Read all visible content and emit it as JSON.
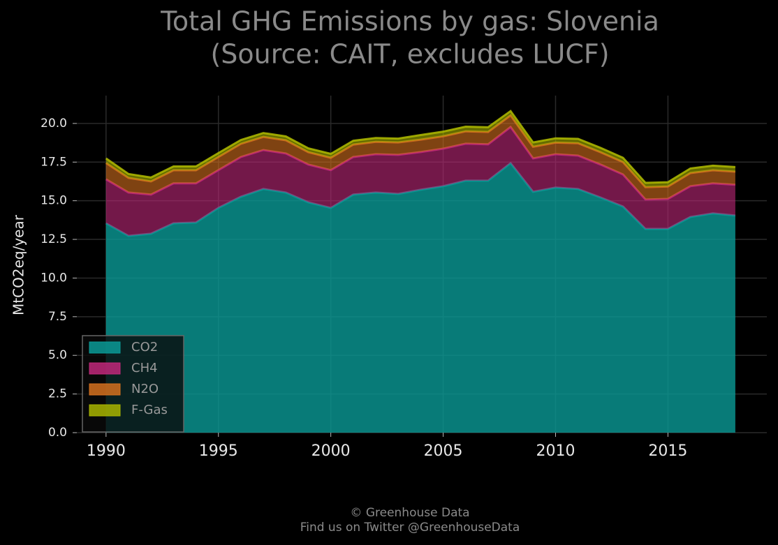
{
  "chart_data": {
    "type": "stacked-area",
    "title": "Total GHG Emissions by gas: Slovenia",
    "subtitle": "(Source: CAIT, excludes LUCF)",
    "y_label": "MtCO2eq/year",
    "footer": [
      "© Greenhouse Data",
      "Find us on Twitter @GreenhouseData"
    ],
    "x": [
      1990,
      1991,
      1992,
      1993,
      1994,
      1995,
      1996,
      1997,
      1998,
      1999,
      2000,
      2001,
      2002,
      2003,
      2004,
      2005,
      2006,
      2007,
      2008,
      2009,
      2010,
      2011,
      2012,
      2013,
      2014,
      2015,
      2016,
      2017,
      2018
    ],
    "series": [
      {
        "name": "CO2",
        "color": "#0a9a96",
        "values": [
          13.54,
          12.73,
          12.87,
          13.54,
          13.59,
          14.54,
          15.26,
          15.76,
          15.53,
          14.9,
          14.54,
          15.4,
          15.53,
          15.44,
          15.71,
          15.94,
          16.3,
          16.3,
          17.43,
          15.58,
          15.85,
          15.76,
          15.21,
          14.63,
          13.18,
          13.18,
          13.95,
          14.18,
          14.04
        ]
      },
      {
        "name": "CH4",
        "color": "#c0287a",
        "values": [
          2.85,
          2.8,
          2.53,
          2.58,
          2.53,
          2.44,
          2.57,
          2.52,
          2.53,
          2.44,
          2.44,
          2.43,
          2.48,
          2.53,
          2.44,
          2.43,
          2.39,
          2.35,
          2.34,
          2.16,
          2.16,
          2.16,
          2.13,
          2.07,
          1.9,
          1.94,
          1.99,
          1.94,
          1.99
        ]
      },
      {
        "name": "N2O",
        "color": "#d4701e",
        "values": [
          1.05,
          0.95,
          0.85,
          0.85,
          0.85,
          0.85,
          0.85,
          0.85,
          0.85,
          0.8,
          0.8,
          0.8,
          0.8,
          0.8,
          0.8,
          0.8,
          0.8,
          0.8,
          0.75,
          0.75,
          0.75,
          0.8,
          0.8,
          0.8,
          0.8,
          0.8,
          0.85,
          0.85,
          0.85
        ]
      },
      {
        "name": "F-Gas",
        "color": "#a8b400",
        "values": [
          0.3,
          0.25,
          0.25,
          0.25,
          0.25,
          0.25,
          0.25,
          0.25,
          0.25,
          0.25,
          0.25,
          0.25,
          0.25,
          0.25,
          0.3,
          0.3,
          0.3,
          0.3,
          0.28,
          0.28,
          0.28,
          0.28,
          0.28,
          0.28,
          0.28,
          0.28,
          0.3,
          0.3,
          0.3
        ]
      }
    ],
    "xlim": [
      1988.7,
      2019.4
    ],
    "xticks": [
      1990,
      1995,
      2000,
      2005,
      2010,
      2015
    ],
    "ylim": [
      0,
      21.8
    ],
    "yticks": [
      {
        "value": 0,
        "label": "0.0"
      },
      {
        "value": 2.5,
        "label": "2.5"
      },
      {
        "value": 5,
        "label": "5.0"
      },
      {
        "value": 7.5,
        "label": "7.5"
      },
      {
        "value": 10,
        "label": "10.0"
      },
      {
        "value": 12.5,
        "label": "12.5"
      },
      {
        "value": 15,
        "label": "15.0"
      },
      {
        "value": 17.5,
        "label": "17.5"
      },
      {
        "value": 20,
        "label": "20.0"
      }
    ],
    "grid": true,
    "legend": "lower left"
  }
}
